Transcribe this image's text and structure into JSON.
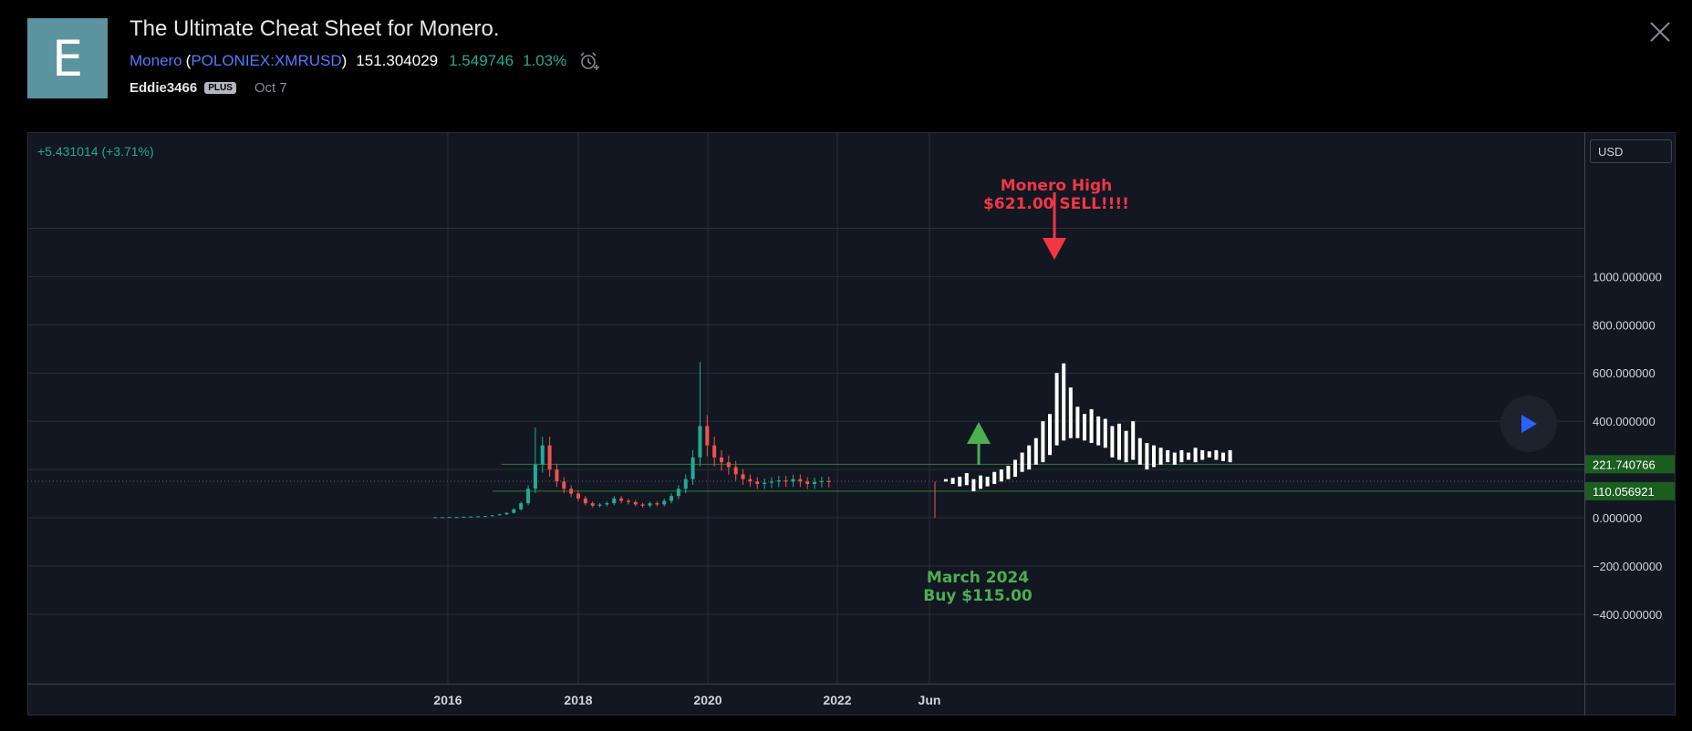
{
  "header": {
    "avatar_letter": "E",
    "title": "The Ultimate Cheat Sheet for Monero.",
    "symbol_name": "Monero",
    "open_paren": "(",
    "ticker": "POLONIEX:XMRUSD",
    "close_paren": ")",
    "price": "151.304029",
    "change": "1.549746",
    "change_pct": "1.03%",
    "alarm_icon": "alarm-clock-plus-icon",
    "author": "Eddie3466",
    "plan_badge": "PLUS",
    "date": "Oct 7",
    "close_icon": "close-icon"
  },
  "toolbar": {
    "currency": "USD",
    "play_icon": "play-icon"
  },
  "colors": {
    "up": "#22ab94",
    "down": "#ef5350",
    "projection": "#ffffff",
    "sell_annotation": "#f23645",
    "buy_annotation": "#4caf50",
    "level_line": "#2e7d32"
  },
  "chart_data": {
    "type": "candlestick",
    "change_label": "+5.431014 (+3.71%)",
    "x_ticks": [
      "2016",
      "2018",
      "2020",
      "2022",
      "Jun"
    ],
    "y_ticks": [
      "1000.000000",
      "800.000000",
      "600.000000",
      "400.000000",
      "0.000000",
      "−200.000000",
      "−400.000000"
    ],
    "ylim": [
      -550,
      1150
    ],
    "levels": [
      {
        "value": 221.740766,
        "label": "221.740766"
      },
      {
        "value": 110.056921,
        "label": "110.056921"
      }
    ],
    "last_price": 151.304029,
    "annotations": [
      {
        "text": [
          "Monero High",
          "$621.00 SELL!!!!"
        ],
        "color": "red",
        "arrow": "down",
        "target_price": 621
      },
      {
        "text": [
          "March 2024",
          "Buy $115.00"
        ],
        "color": "green",
        "arrow": "up",
        "target_price": 115
      }
    ],
    "grid": true
  }
}
